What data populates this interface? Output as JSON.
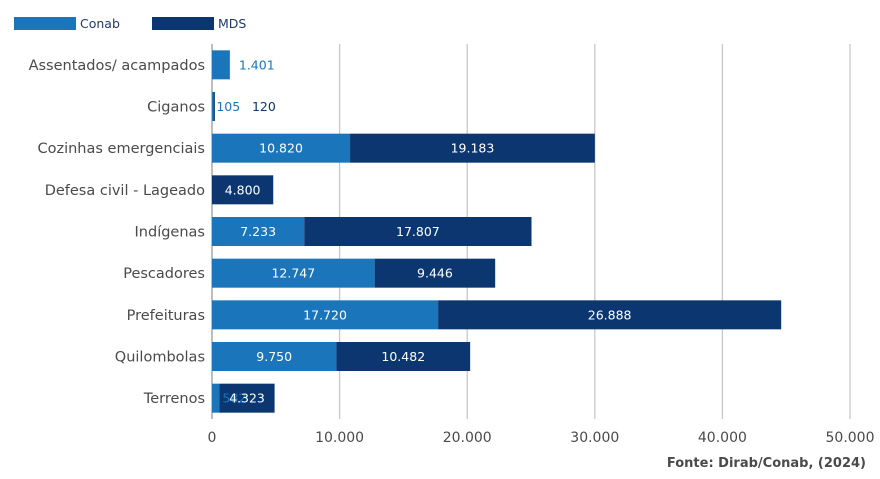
{
  "chart_data": {
    "type": "bar",
    "orientation": "horizontal",
    "stacked": true,
    "categories": [
      "Assentados/ acampados",
      "Ciganos",
      "Cozinhas emergenciais",
      "Defesa civil - Lageado",
      "Indígenas",
      "Pescadores",
      "Prefeituras",
      "Quilombolas",
      "Terrenos"
    ],
    "series": [
      {
        "name": "Conab",
        "color": "#1a75bb",
        "values": [
          1401,
          105,
          10820,
          0,
          7233,
          12747,
          17720,
          9750,
          582
        ],
        "labels": [
          "1.401",
          "105",
          "10.820",
          "",
          "7.233",
          "12.747",
          "17.720",
          "9.750",
          "582"
        ]
      },
      {
        "name": "MDS",
        "color": "#0b3670",
        "values": [
          0,
          120,
          19183,
          4800,
          17807,
          9446,
          26888,
          10482,
          4323
        ],
        "labels": [
          "",
          "120",
          "19.183",
          "4.800",
          "17.807",
          "9.446",
          "26.888",
          "10.482",
          "4.323"
        ]
      }
    ],
    "xlim": [
      0,
      50000
    ],
    "xticks": [
      0,
      10000,
      20000,
      30000,
      40000,
      50000
    ],
    "xtick_labels": [
      "0",
      "10.000",
      "20.000",
      "30.000",
      "40.000",
      "50.000"
    ],
    "grid": "vertical",
    "legend_position": "top-left",
    "title": "",
    "xlabel": "",
    "ylabel": ""
  },
  "source": "Fonte: Dirab/Conab, (2024)"
}
